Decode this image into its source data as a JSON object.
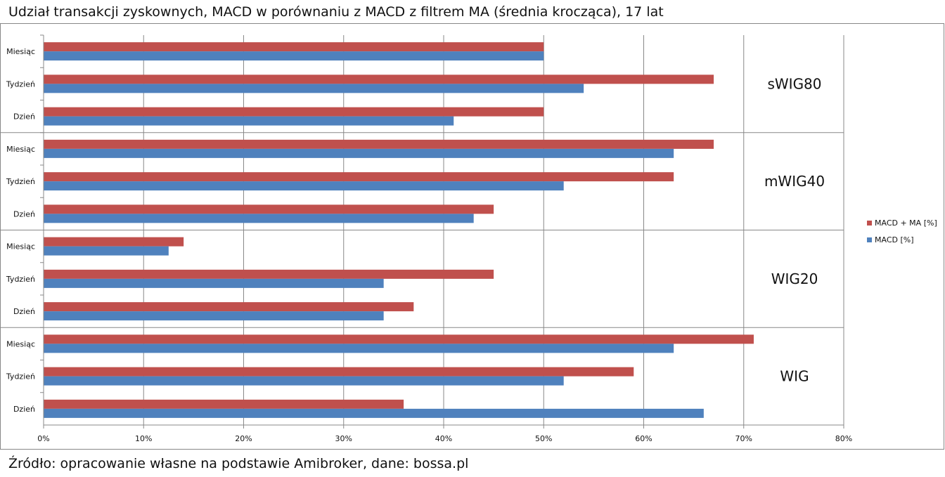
{
  "title": "Udział transakcji zyskownych, MACD w porównaniu z MACD z filtrem MA (średnia krocząca), 17 lat",
  "source": "Źródło: opracowanie własne na podstawie Amibroker, dane: bossa.pl",
  "chart_data": {
    "type": "bar",
    "orientation": "horizontal",
    "xlim": [
      0,
      80
    ],
    "x_ticks": [
      "0%",
      "10%",
      "20%",
      "30%",
      "40%",
      "50%",
      "60%",
      "70%",
      "80%"
    ],
    "grid": true,
    "legend_position": "right",
    "groups": [
      {
        "name": "sWIG80",
        "categories": [
          "Miesiąc",
          "Tydzień",
          "Dzień"
        ],
        "macd_ma": [
          50,
          67,
          50
        ],
        "macd": [
          50,
          54,
          41
        ]
      },
      {
        "name": "mWIG40",
        "categories": [
          "Miesiąc",
          "Tydzień",
          "Dzień"
        ],
        "macd_ma": [
          67,
          63,
          45
        ],
        "macd": [
          63,
          52,
          43
        ]
      },
      {
        "name": "WIG20",
        "categories": [
          "Miesiąc",
          "Tydzień",
          "Dzień"
        ],
        "macd_ma": [
          14,
          45,
          37
        ],
        "macd": [
          12.5,
          34,
          34
        ]
      },
      {
        "name": "WIG",
        "categories": [
          "Miesiąc",
          "Tydzień",
          "Dzień"
        ],
        "macd_ma": [
          71,
          59,
          36
        ],
        "macd": [
          63,
          52,
          66
        ]
      }
    ],
    "series": [
      {
        "name": "MACD + MA [%]",
        "key": "macd_ma",
        "color": "#C0504D"
      },
      {
        "name": "MACD [%]",
        "key": "macd",
        "color": "#4F81BD"
      }
    ]
  }
}
